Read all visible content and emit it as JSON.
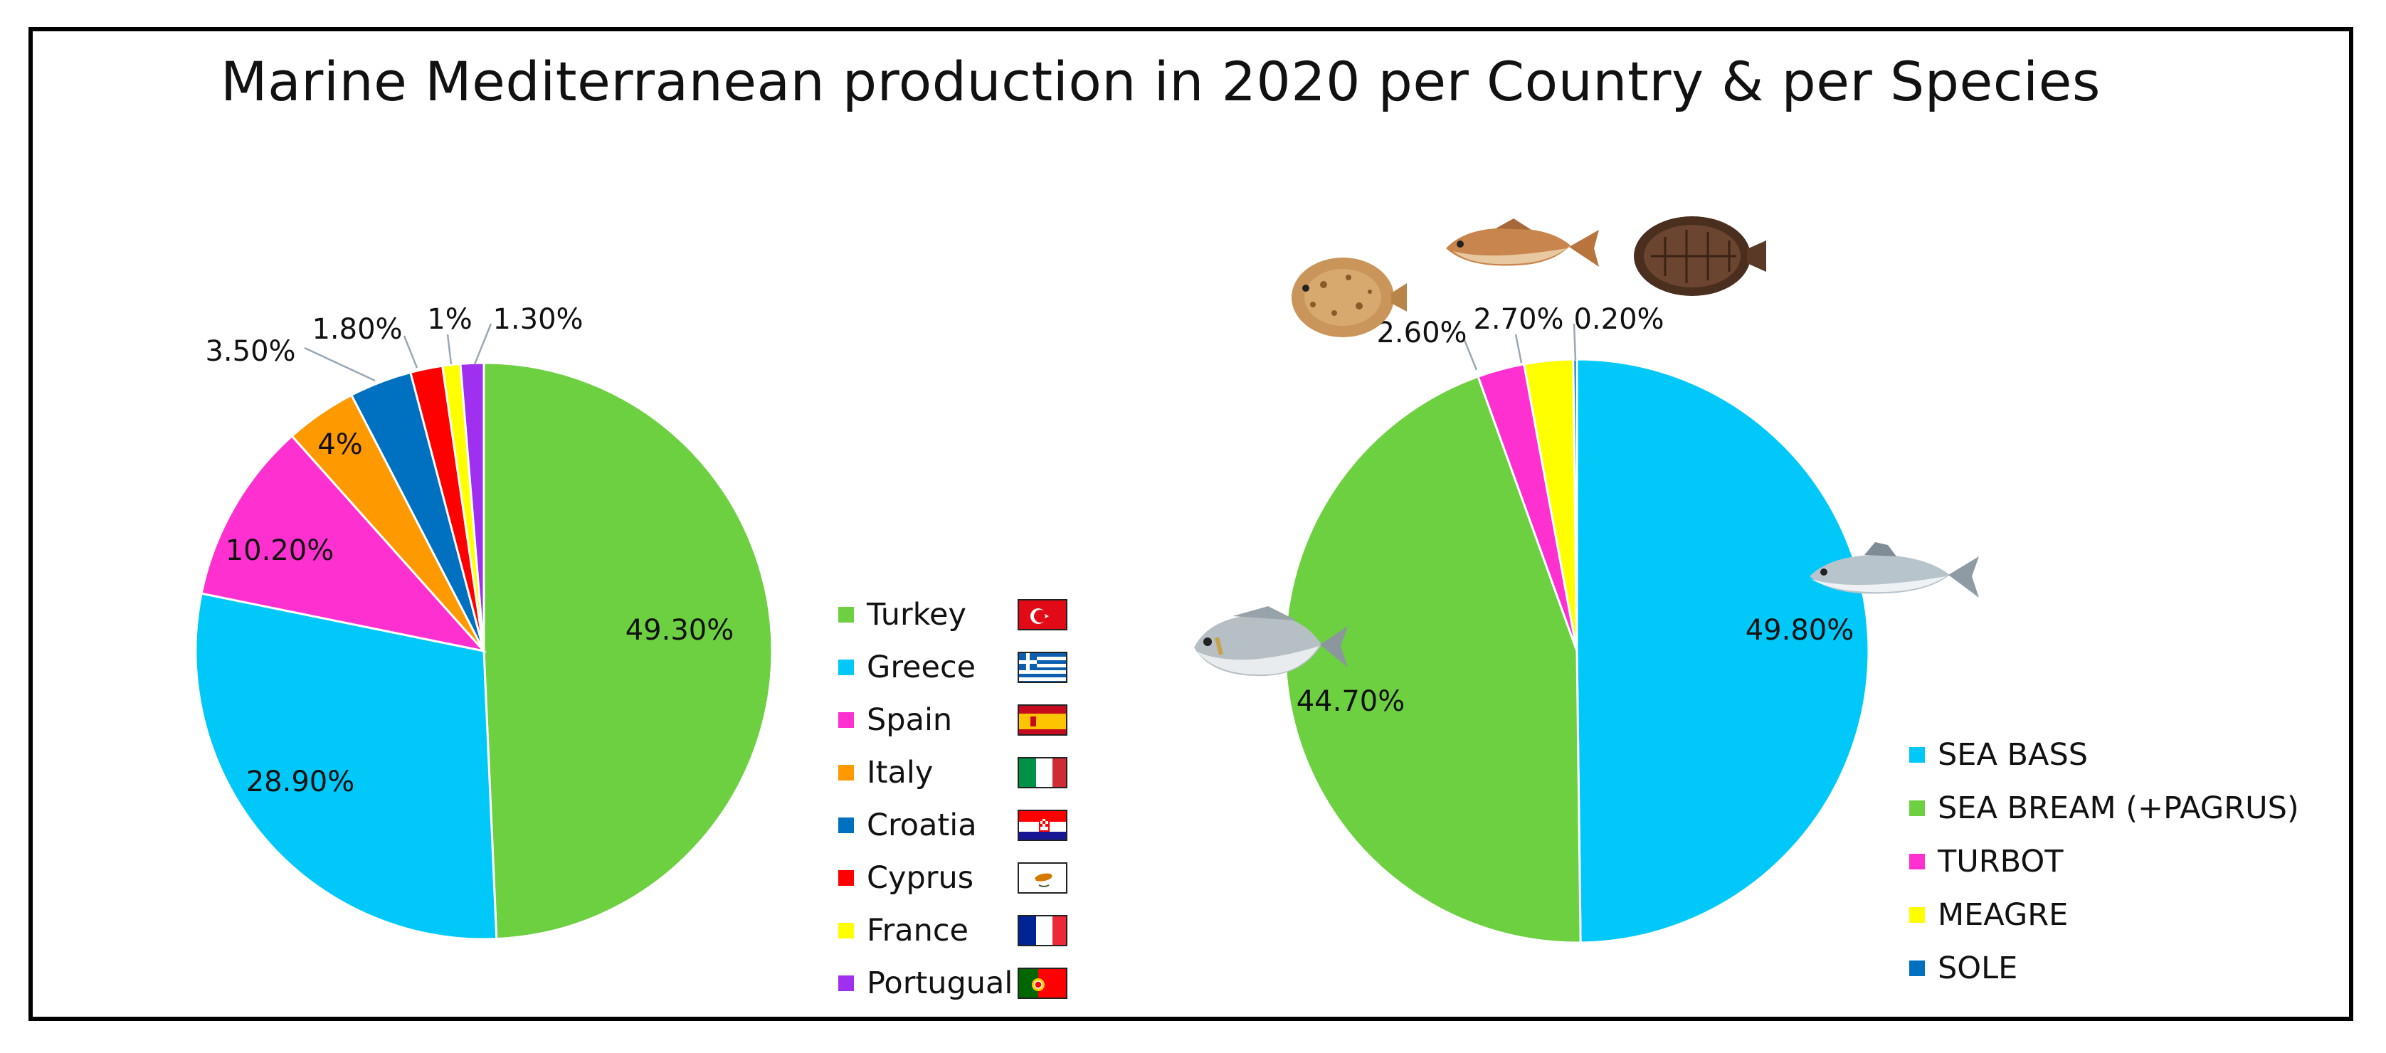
{
  "title": "Marine Mediterranean production in 2020 per Country & per Species",
  "chart_data": [
    {
      "type": "pie",
      "title": "",
      "categories": [
        "Turkey",
        "Greece",
        "Spain",
        "Italy",
        "Croatia",
        "Cyprus",
        "France",
        "Portugual"
      ],
      "values": [
        49.3,
        28.9,
        10.2,
        4,
        3.5,
        1.8,
        1,
        1.3
      ],
      "labels": [
        "49.30%",
        "28.90%",
        "10.20%",
        "4%",
        "3.50%",
        "1.80%",
        "1%",
        "1.30%"
      ],
      "colors": [
        "#6cd040",
        "#00c8f8",
        "#ff30d0",
        "#ff9900",
        "#0070c0",
        "#ff0000",
        "#ffff00",
        "#a030f0"
      ],
      "legend_position": "right",
      "flags": [
        "turkey-flag",
        "greece-flag",
        "spain-flag",
        "italy-flag",
        "croatia-flag",
        "cyprus-flag",
        "france-flag",
        "portugal-flag"
      ]
    },
    {
      "type": "pie",
      "title": "",
      "categories": [
        "SEA BASS",
        "SEA BREAM (+PAGRUS)",
        "TURBOT",
        "MEAGRE",
        "SOLE"
      ],
      "values": [
        49.8,
        44.7,
        2.6,
        2.7,
        0.2
      ],
      "labels": [
        "49.80%",
        "44.70%",
        "2.60%",
        "2.70%",
        "0.20%"
      ],
      "colors": [
        "#00c8f8",
        "#6cd040",
        "#ff30d0",
        "#ffff00",
        "#0070c0"
      ],
      "legend_position": "bottom-right",
      "icons": [
        "sea-bass-fish-icon",
        "sea-bream-fish-icon",
        "turbot-fish-icon",
        "meagre-fish-icon",
        "sole-fish-icon"
      ]
    }
  ]
}
